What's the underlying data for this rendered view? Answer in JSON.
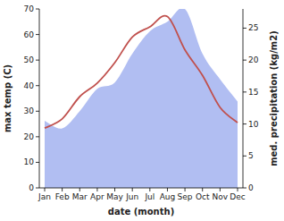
{
  "chart_data": {
    "type": "line",
    "x_label": "date (month)",
    "y_label": "max temp (C)",
    "y2_label": "med. precipitation (kg/m2)",
    "categories": [
      "Jan",
      "Feb",
      "Mar",
      "Apr",
      "May",
      "Jun",
      "Jul",
      "Aug",
      "Sep",
      "Oct",
      "Nov",
      "Dec"
    ],
    "ylim": [
      0,
      70
    ],
    "yticks": [
      0,
      10,
      20,
      30,
      40,
      50,
      60,
      70
    ],
    "y2lim": [
      0,
      28
    ],
    "y2ticks": [
      0,
      5,
      10,
      15,
      20,
      25
    ],
    "grid": false,
    "series": [
      {
        "type": "area",
        "axis": "y2",
        "color": "#b1bef2",
        "values": [
          10.5,
          9.3,
          12,
          15.5,
          16.5,
          21,
          24.5,
          26,
          28,
          21,
          17,
          13.5
        ]
      },
      {
        "type": "line",
        "color": "#c0504d",
        "values": [
          23.4,
          27,
          35.7,
          41,
          49,
          59,
          63,
          67,
          54,
          44,
          31.5,
          25.5
        ]
      }
    ]
  }
}
